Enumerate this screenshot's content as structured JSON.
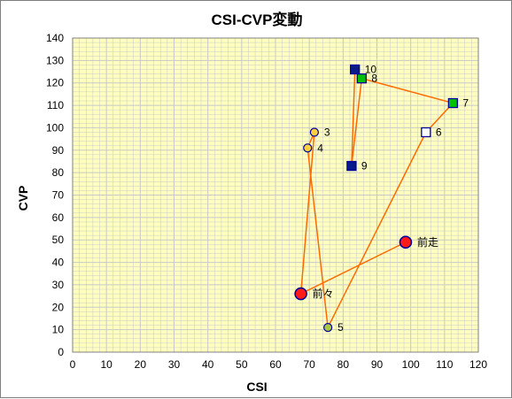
{
  "chart_data": {
    "type": "scatter",
    "title": "CSI-CVP変動",
    "xlabel": "CSI",
    "ylabel": "CVP",
    "xlim": [
      0,
      120
    ],
    "ylim": [
      0,
      140
    ],
    "xticks": [
      0,
      10,
      20,
      30,
      40,
      50,
      60,
      70,
      80,
      90,
      100,
      110,
      120
    ],
    "yticks": [
      0,
      10,
      20,
      30,
      40,
      50,
      60,
      70,
      80,
      90,
      100,
      110,
      120,
      130,
      140
    ],
    "grid": true,
    "legend": "none",
    "colors": {
      "plot_bg": "#ffffc0",
      "grid": "#c8c8c8",
      "line": "#ff6a00",
      "circle_yellow": "#ffd040",
      "circle_green": "#a8c840",
      "circle_red": "#ff1a1a",
      "circle_edge": "#0000a0",
      "square_navy": "#0a1a8a",
      "square_green": "#00c000",
      "square_white": "#ffffff"
    },
    "points": [
      {
        "label": "前走",
        "x": 98.5,
        "y": 49,
        "marker": "circle-red"
      },
      {
        "label": "前々",
        "x": 67.5,
        "y": 26,
        "marker": "circle-red"
      },
      {
        "label": "3",
        "x": 71.5,
        "y": 98,
        "marker": "circle-yellow"
      },
      {
        "label": "4",
        "x": 69.5,
        "y": 91,
        "marker": "circle-yellow"
      },
      {
        "label": "5",
        "x": 75.5,
        "y": 11,
        "marker": "circle-green"
      },
      {
        "label": "6",
        "x": 104.5,
        "y": 98,
        "marker": "square-white"
      },
      {
        "label": "7",
        "x": 112.5,
        "y": 111,
        "marker": "square-green"
      },
      {
        "label": "8",
        "x": 85.5,
        "y": 122,
        "marker": "square-green"
      },
      {
        "label": "9",
        "x": 82.5,
        "y": 83,
        "marker": "square-navy"
      },
      {
        "label": "10",
        "x": 83.5,
        "y": 126,
        "marker": "square-navy"
      }
    ]
  }
}
